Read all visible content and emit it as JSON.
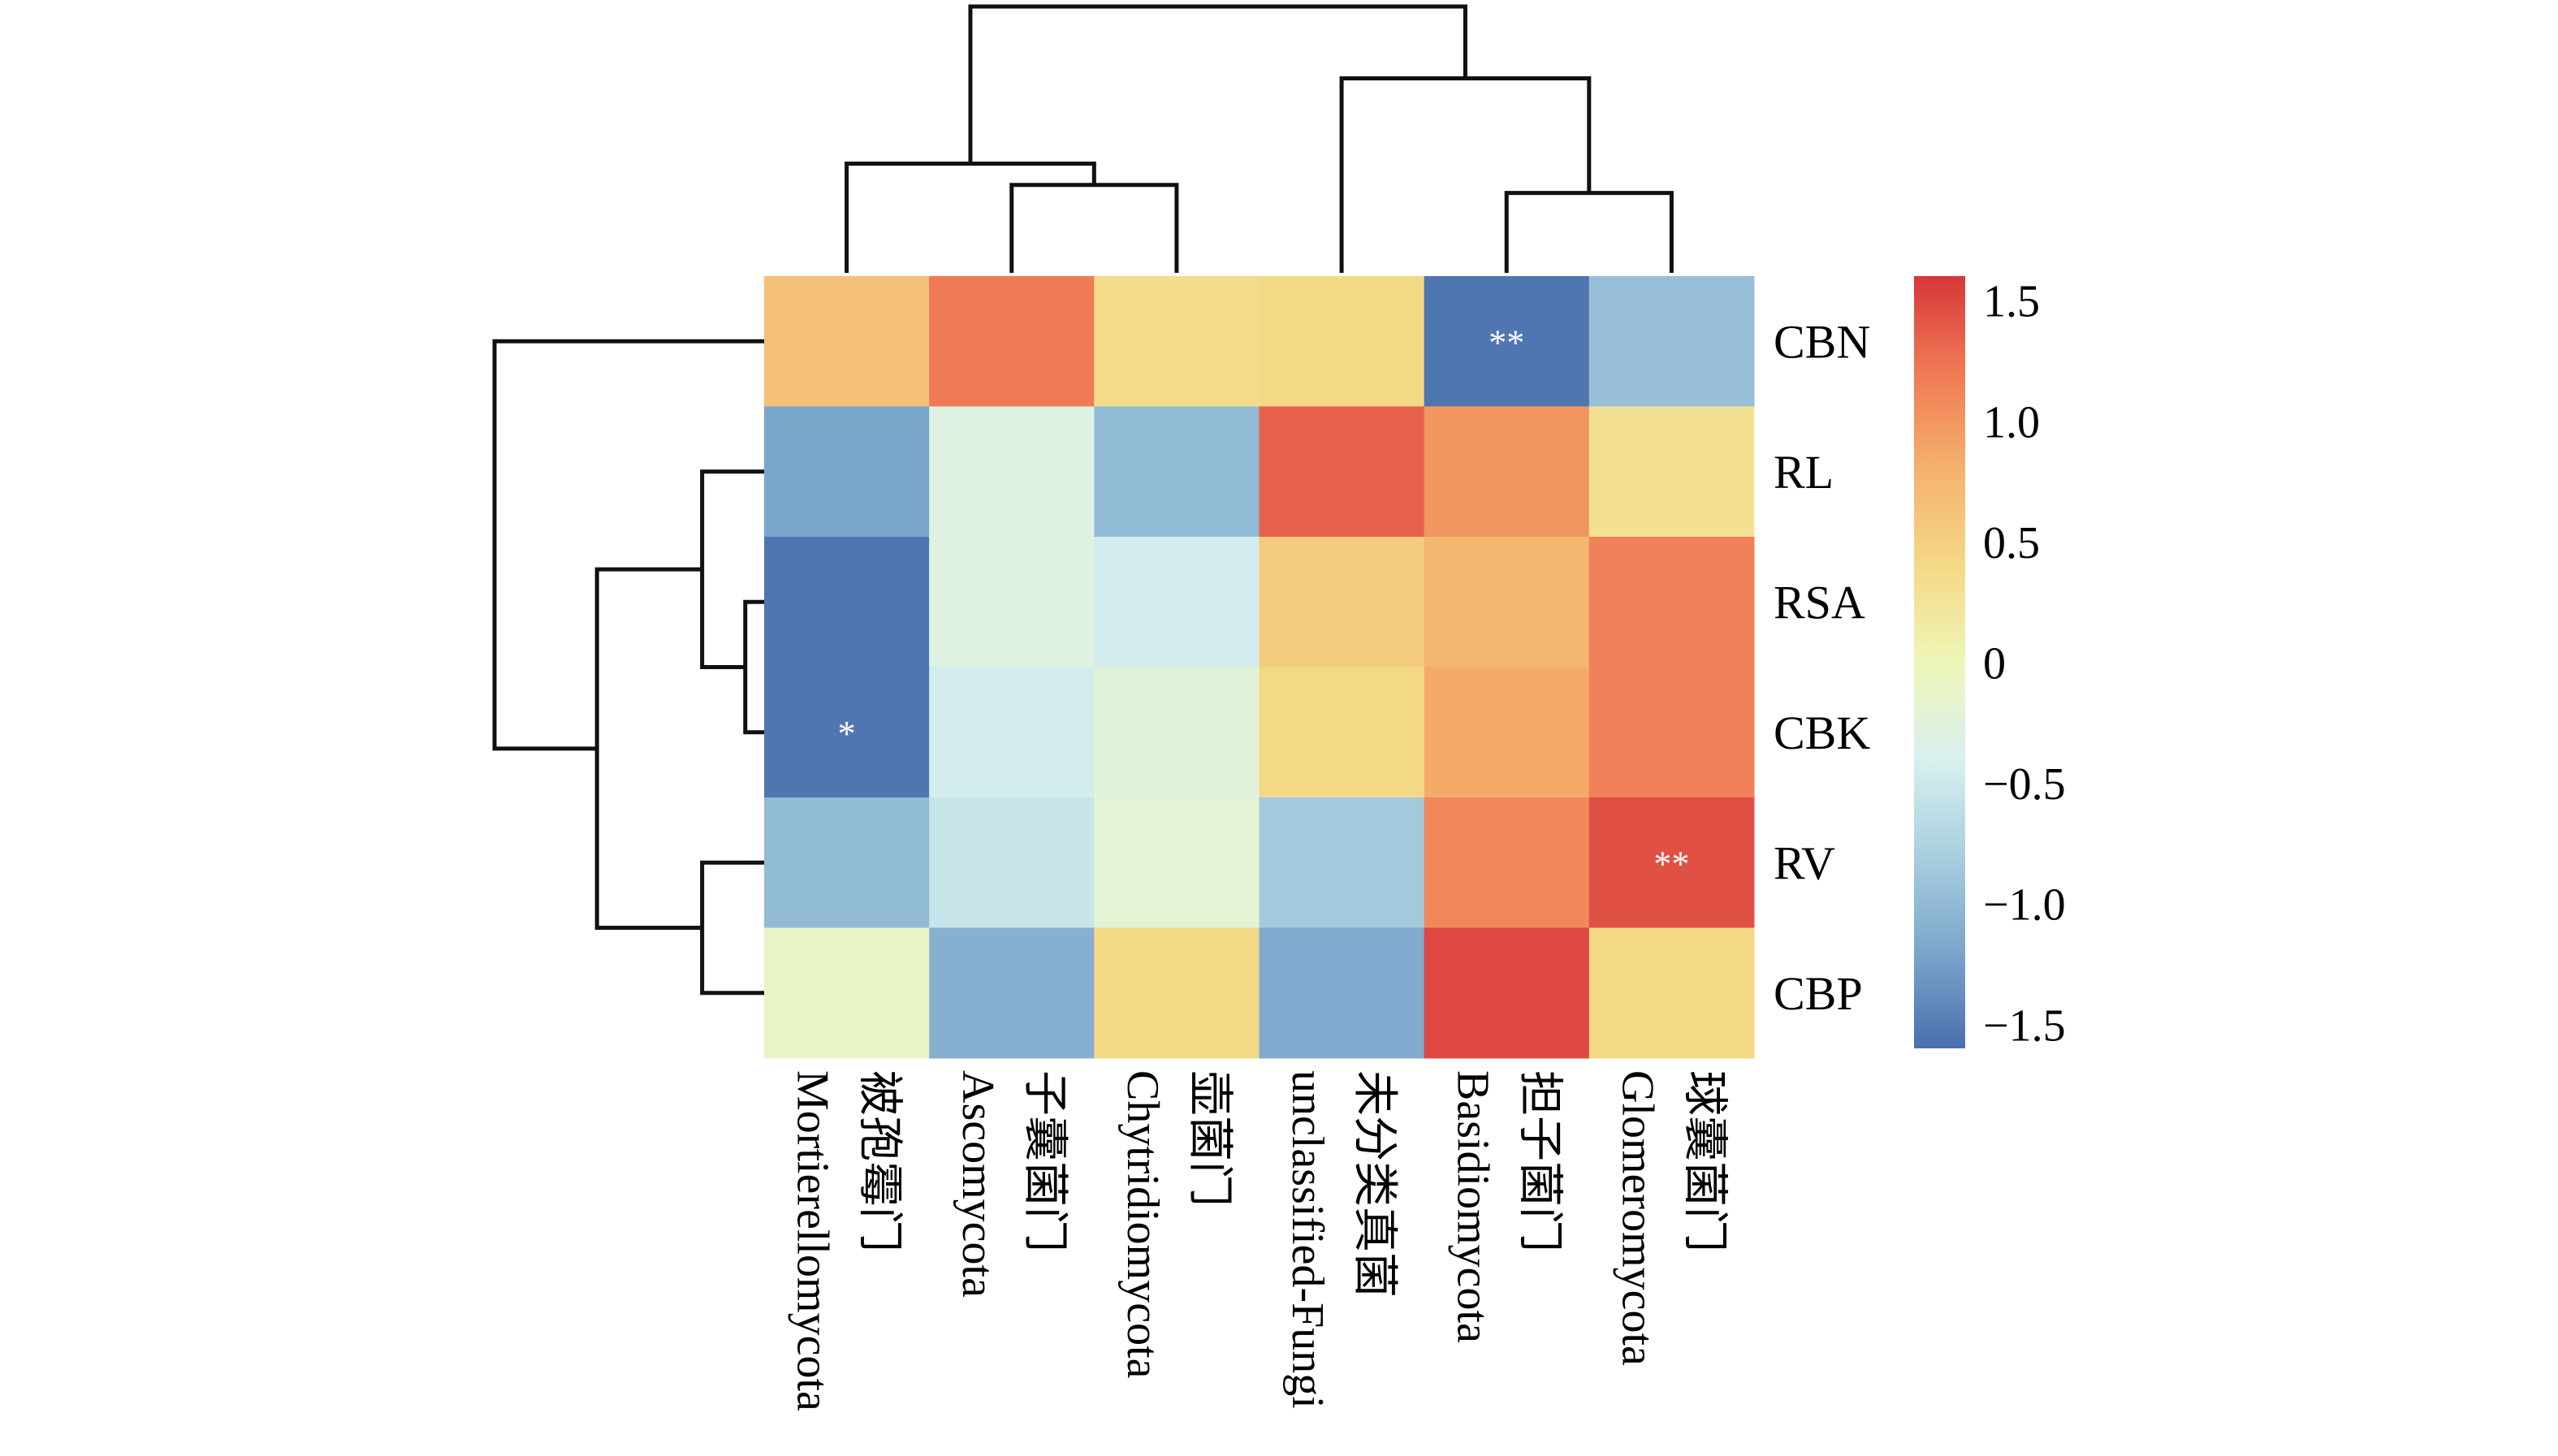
{
  "chart_data": {
    "type": "heatmap",
    "title": "",
    "xlabel": "",
    "ylabel": "",
    "columns": [
      {
        "en": "Mortierellomycota",
        "zh": "被孢霉门"
      },
      {
        "en": "Ascomycota",
        "zh": "子囊菌门"
      },
      {
        "en": "Chytridiomycota",
        "zh": "壶菌门"
      },
      {
        "en": "unclassified-Fungi",
        "zh": "未分类真菌"
      },
      {
        "en": "Basidiomycota",
        "zh": "担子菌门"
      },
      {
        "en": "Glomeromycota",
        "zh": "球囊菌门"
      }
    ],
    "rows": [
      "CBN",
      "RL",
      "RSA",
      "CBK",
      "RV",
      "CBP"
    ],
    "values": [
      [
        0.65,
        1.2,
        0.35,
        0.4,
        -1.55,
        -0.95
      ],
      [
        -1.2,
        -0.3,
        -1.0,
        1.35,
        1.0,
        0.3
      ],
      [
        -1.55,
        -0.3,
        -0.45,
        0.55,
        0.75,
        1.15
      ],
      [
        -1.55,
        -0.45,
        -0.25,
        0.4,
        0.85,
        1.15
      ],
      [
        -1.0,
        -0.55,
        -0.2,
        -0.85,
        1.1,
        1.45
      ],
      [
        -0.1,
        -1.1,
        0.4,
        -1.15,
        1.5,
        0.4
      ]
    ],
    "significance": [
      [
        "",
        "",
        "",
        "",
        "**",
        ""
      ],
      [
        "",
        "",
        "",
        "",
        "",
        ""
      ],
      [
        "",
        "",
        "",
        "",
        "",
        ""
      ],
      [
        "*",
        "",
        "",
        "",
        "",
        ""
      ],
      [
        "",
        "",
        "",
        "",
        "",
        "**"
      ],
      [
        "",
        "",
        "",
        "",
        "",
        ""
      ]
    ],
    "colorbar": {
      "range": [
        -1.6,
        1.6
      ],
      "ticks": [
        1.5,
        1.0,
        0.5,
        0,
        -0.5,
        -1.0,
        -1.5
      ],
      "tick_labels": [
        "1.5",
        "1.0",
        "0.5",
        "0",
        "−0.5",
        "−1.0",
        "−1.5"
      ],
      "colors": [
        "#4a6fae",
        "#7ba6cb",
        "#a8cfdf",
        "#d9f0ef",
        "#eef6b8",
        "#f4d985",
        "#f4b26d",
        "#f07a55",
        "#d6373a"
      ],
      "placement": "right"
    },
    "column_dendrogram": {
      "leaf_order": [
        "Mortierellomycota",
        "Ascomycota",
        "Chytridiomycota",
        "unclassified-Fungi",
        "Basidiomycota",
        "Glomeromycota"
      ],
      "merges": [
        {
          "a": "Basidiomycota",
          "b": "Glomeromycota",
          "height": 0.3
        },
        {
          "a": "Ascomycota",
          "b": "Chytridiomycota",
          "height": 0.33
        },
        {
          "a": "Mortierellomycota",
          "b": "(Ascomycota,Chytridiomycota)",
          "height": 0.41
        },
        {
          "a": "unclassified-Fungi",
          "b": "(Basidiomycota,Glomeromycota)",
          "height": 0.73
        },
        {
          "a": "left-cluster",
          "b": "right-cluster",
          "height": 1.0
        }
      ]
    },
    "row_dendrogram": {
      "leaf_order": [
        "CBN",
        "RL",
        "RSA",
        "CBK",
        "RV",
        "CBP"
      ],
      "merges": [
        {
          "a": "RSA",
          "b": "CBK",
          "height": 0.07
        },
        {
          "a": "RV",
          "b": "CBP",
          "height": 0.23
        },
        {
          "a": "RL",
          "b": "(RSA,CBK)",
          "height": 0.23
        },
        {
          "a": "(RL,(RSA,CBK))",
          "b": "(RV,CBP)",
          "height": 0.62
        },
        {
          "a": "CBN",
          "b": "rest",
          "height": 1.0
        }
      ]
    }
  }
}
